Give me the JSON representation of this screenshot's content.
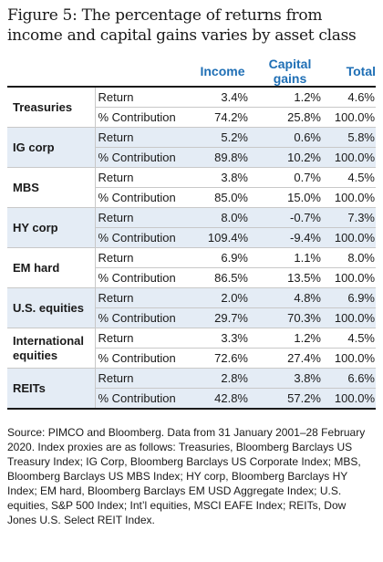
{
  "figure": {
    "title": "Figure 5: The percentage of returns from income and capital gains varies by asset class"
  },
  "table": {
    "headers": [
      "Income",
      "Capital gains",
      "Total"
    ],
    "metric_labels": [
      "Return",
      "% Contribution"
    ],
    "rows": [
      {
        "asset": "Treasuries",
        "return": [
          "3.4%",
          "1.2%",
          "4.6%"
        ],
        "contribution": [
          "74.2%",
          "25.8%",
          "100.0%"
        ]
      },
      {
        "asset": "IG corp",
        "return": [
          "5.2%",
          "0.6%",
          "5.8%"
        ],
        "contribution": [
          "89.8%",
          "10.2%",
          "100.0%"
        ]
      },
      {
        "asset": "MBS",
        "return": [
          "3.8%",
          "0.7%",
          "4.5%"
        ],
        "contribution": [
          "85.0%",
          "15.0%",
          "100.0%"
        ]
      },
      {
        "asset": "HY corp",
        "return": [
          "8.0%",
          "-0.7%",
          "7.3%"
        ],
        "contribution": [
          "109.4%",
          "-9.4%",
          "100.0%"
        ]
      },
      {
        "asset": "EM hard",
        "return": [
          "6.9%",
          "1.1%",
          "8.0%"
        ],
        "contribution": [
          "86.5%",
          "13.5%",
          "100.0%"
        ]
      },
      {
        "asset": "U.S. equities",
        "return": [
          "2.0%",
          "4.8%",
          "6.9%"
        ],
        "contribution": [
          "29.7%",
          "70.3%",
          "100.0%"
        ]
      },
      {
        "asset": "International equities",
        "return": [
          "3.3%",
          "1.2%",
          "4.5%"
        ],
        "contribution": [
          "72.6%",
          "27.4%",
          "100.0%"
        ]
      },
      {
        "asset": "REITs",
        "return": [
          "2.8%",
          "3.8%",
          "6.6%"
        ],
        "contribution": [
          "42.8%",
          "57.2%",
          "100.0%"
        ]
      }
    ]
  },
  "source": "Source: PIMCO and Bloomberg. Data from 31 January 2001–28 February 2020. Index proxies are as follows: Treasuries, Bloomberg Barclays US Treasury Index; IG Corp, Bloomberg Barclays US Corporate Index; MBS, Bloomberg Barclays US MBS Index; HY corp, Bloomberg Barclays HY Index; EM hard, Bloomberg Barclays EM USD Aggregate Index; U.S. equities, S&P 500 Index; Int’l equities, MSCI EAFE Index; REITs, Dow Jones U.S. Select REIT Index.",
  "colors": {
    "header": "#1f6fb5",
    "shade": "#e4ecf5"
  }
}
